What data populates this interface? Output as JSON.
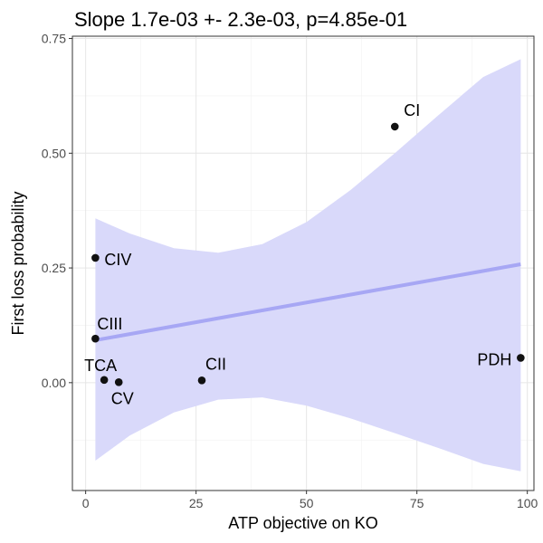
{
  "chart_data": {
    "type": "scatter",
    "title": "Slope 1.7e-03 +- 2.3e-03, p=4.85e-01",
    "xlabel": "ATP objective on KO",
    "ylabel": "First loss probability",
    "xlim": [
      -3,
      101.5
    ],
    "ylim": [
      -0.235,
      0.755
    ],
    "x_ticks": [
      0,
      25,
      50,
      75,
      100
    ],
    "x_tick_labels": [
      "0",
      "25",
      "50",
      "75",
      "100"
    ],
    "y_ticks": [
      0,
      0.25,
      0.5,
      0.75
    ],
    "y_tick_labels": [
      "0.00",
      "0.25",
      "0.50",
      "0.75"
    ],
    "grid": true,
    "points": [
      {
        "label": "CI",
        "x": 70,
        "y": 0.558
      },
      {
        "label": "CIV",
        "x": 2.2,
        "y": 0.272
      },
      {
        "label": "CIII",
        "x": 2.2,
        "y": 0.096
      },
      {
        "label": "TCA",
        "x": 4.2,
        "y": 0.006
      },
      {
        "label": "CV",
        "x": 7.5,
        "y": 0.001
      },
      {
        "label": "CII",
        "x": 26.3,
        "y": 0.005
      },
      {
        "label": "PDH",
        "x": 98.5,
        "y": 0.054
      }
    ],
    "fit": {
      "x_start": 2.2,
      "y_start": 0.0925,
      "x_end": 98.5,
      "y_end": 0.258,
      "band": [
        {
          "x": 2.2,
          "lower": -0.17,
          "upper": 0.358
        },
        {
          "x": 10,
          "lower": -0.115,
          "upper": 0.325
        },
        {
          "x": 20,
          "lower": -0.065,
          "upper": 0.293
        },
        {
          "x": 30,
          "lower": -0.037,
          "upper": 0.283
        },
        {
          "x": 40,
          "lower": -0.032,
          "upper": 0.302
        },
        {
          "x": 50,
          "lower": -0.05,
          "upper": 0.35
        },
        {
          "x": 60,
          "lower": -0.078,
          "upper": 0.42
        },
        {
          "x": 70,
          "lower": -0.11,
          "upper": 0.5
        },
        {
          "x": 80,
          "lower": -0.143,
          "upper": 0.584
        },
        {
          "x": 90,
          "lower": -0.177,
          "upper": 0.666
        },
        {
          "x": 98.5,
          "lower": -0.193,
          "upper": 0.705
        }
      ]
    },
    "colors": {
      "band": "#d9d9fa",
      "fit_line": "#a7a7f4",
      "point": "#111111",
      "grid_major": "#e6e6e6",
      "grid_minor": "#f2f2f2",
      "panel_border": "#333333"
    }
  }
}
